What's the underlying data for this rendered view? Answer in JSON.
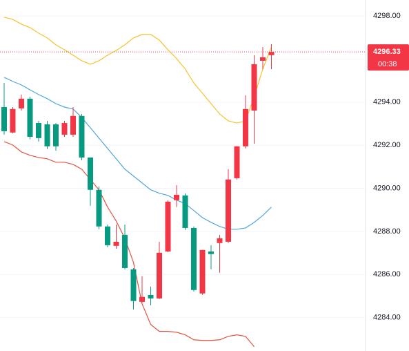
{
  "chart_data": {
    "type": "candlestick",
    "open": [
      4293.77,
      4292.59,
      4293.71,
      4294.16,
      4293.03,
      4292.97,
      4292.97,
      4292.49,
      4292.49,
      4293.36,
      4291.43,
      4289.93,
      4288.23,
      4287.33,
      4287.84,
      4286.24,
      4284.73,
      4285.05,
      4284.89,
      4287.07,
      4289.45,
      4289.67,
      4288.16,
      4285.12,
      4287.07,
      4287.46,
      4287.52,
      4290.47,
      4291.95,
      4293.61,
      4295.92,
      4296.18
    ],
    "high": [
      4294.89,
      4293.77,
      4294.35,
      4294.25,
      4293.13,
      4293.13,
      4293.03,
      4293.13,
      4293.77,
      4293.45,
      4291.43,
      4290.09,
      4288.32,
      4288.32,
      4288.32,
      4286.3,
      4285.92,
      4285.44,
      4287.52,
      4289.45,
      4290.15,
      4289.77,
      4288.23,
      4287.14,
      4287.36,
      4287.84,
      4290.89,
      4291.95,
      4294.32,
      4296.18,
      4296.56,
      4296.69
    ],
    "low": [
      4292.49,
      4292.55,
      4293.61,
      4292.27,
      4292.17,
      4291.82,
      4291.75,
      4292.39,
      4292.39,
      4291.3,
      4289.19,
      4288.1,
      4287.27,
      4287.2,
      4286.24,
      4284.38,
      4284.7,
      4284.57,
      4284.86,
      4287.04,
      4289.13,
      4288.07,
      4285.21,
      4285.06,
      4286.24,
      4286.08,
      4287.46,
      4290.41,
      4291.85,
      4292.07,
      4295.53,
      4295.53
    ],
    "close": [
      4292.65,
      4293.68,
      4294.16,
      4292.39,
      4292.33,
      4291.95,
      4291.95,
      4293.03,
      4293.36,
      4291.43,
      4289.93,
      4288.23,
      4287.36,
      4287.52,
      4286.3,
      4284.77,
      4284.96,
      4284.89,
      4287.01,
      4289.38,
      4289.7,
      4288.16,
      4285.28,
      4287.14,
      4286.95,
      4287.68,
      4290.41,
      4291.95,
      4293.68,
      4295.76,
      4296.08,
      4296.33
    ],
    "up_color": "#f23645",
    "down_color": "#089981",
    "series": [
      {
        "color": "#f5c22b",
        "values": [
          4297.94,
          4297.84,
          4297.62,
          4297.46,
          4297.2,
          4296.98,
          4296.66,
          4296.43,
          4296.18,
          4295.92,
          4295.76,
          4295.92,
          4296.18,
          4296.4,
          4296.66,
          4296.98,
          4297.14,
          4297.14,
          4296.88,
          4296.43,
          4296.02,
          4295.54,
          4294.89,
          4294.41,
          4293.93,
          4293.45,
          4293.13,
          4293.03,
          4293.13,
          4294.25,
          4295.54,
          4296.56
        ]
      },
      {
        "color": "#4ea6dc",
        "values": [
          4295.15,
          4294.96,
          4294.8,
          4294.57,
          4294.35,
          4294.16,
          4293.93,
          4293.77,
          4293.68,
          4293.29,
          4292.81,
          4292.33,
          4291.85,
          4291.37,
          4290.89,
          4290.57,
          4290.25,
          4289.93,
          4289.77,
          4289.67,
          4289.45,
          4289.29,
          4288.97,
          4288.64,
          4288.42,
          4288.23,
          4288.1,
          4288.1,
          4288.16,
          4288.42,
          4288.74,
          4289.13
        ]
      },
      {
        "color": "#e5533f",
        "values": [
          4292.17,
          4292.01,
          4291.69,
          4291.53,
          4291.43,
          4291.37,
          4291.21,
          4291.21,
          4291.11,
          4290.89,
          4290.41,
          4289.93,
          4289.13,
          4288.48,
          4287.68,
          4286.56,
          4284.64,
          4283.68,
          4283.36,
          4283.36,
          4283.32,
          4283.2,
          4282.97,
          4282.94,
          4282.94,
          4282.97,
          4283.13,
          4283.2,
          4283.13,
          4282.65,
          null,
          null
        ]
      }
    ],
    "ylim": [
      4282.45,
      4298.74
    ],
    "yticks": [
      {
        "value": 4284,
        "label": "4284.00"
      },
      {
        "value": 4286,
        "label": "4286.00"
      },
      {
        "value": 4288,
        "label": "4288.00"
      },
      {
        "value": 4290,
        "label": "4290.00"
      },
      {
        "value": 4292,
        "label": "4292.00"
      },
      {
        "value": 4294,
        "label": "4294.00"
      },
      {
        "value": 4296,
        "label": "4296.00"
      },
      {
        "value": 4298,
        "label": "4298.00"
      }
    ],
    "grid": true,
    "current_price": 4296.33,
    "countdown": "00:38"
  }
}
